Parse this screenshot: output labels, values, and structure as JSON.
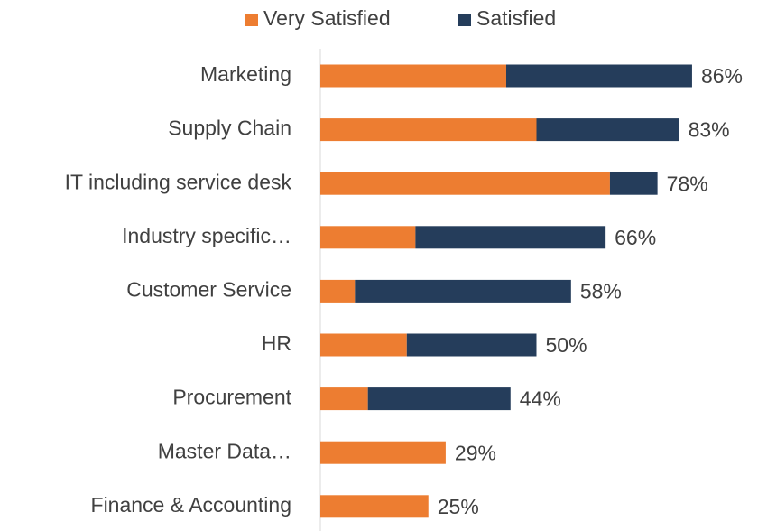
{
  "chart_data": {
    "type": "stacked-bar-horizontal",
    "categories": [
      "Marketing",
      "Supply Chain",
      "IT including service desk",
      "Industry specific…",
      "Customer Service",
      "HR",
      "Procurement",
      "Master Data…",
      "Finance & Accounting"
    ],
    "series": [
      {
        "name": "Very Satisfied",
        "color": "#ed7d31",
        "values": [
          43,
          50,
          67,
          22,
          8,
          20,
          11,
          29,
          25
        ]
      },
      {
        "name": "Satisfied",
        "color": "#253d5b",
        "values": [
          43,
          33,
          11,
          44,
          50,
          30,
          33,
          0,
          0
        ]
      }
    ],
    "totals": [
      86,
      83,
      78,
      66,
      58,
      50,
      44,
      29,
      25
    ],
    "total_labels": [
      "86%",
      "83%",
      "78%",
      "66%",
      "58%",
      "50%",
      "44%",
      "29%",
      "25%"
    ],
    "xlim": [
      0,
      100
    ],
    "legend": "top"
  }
}
